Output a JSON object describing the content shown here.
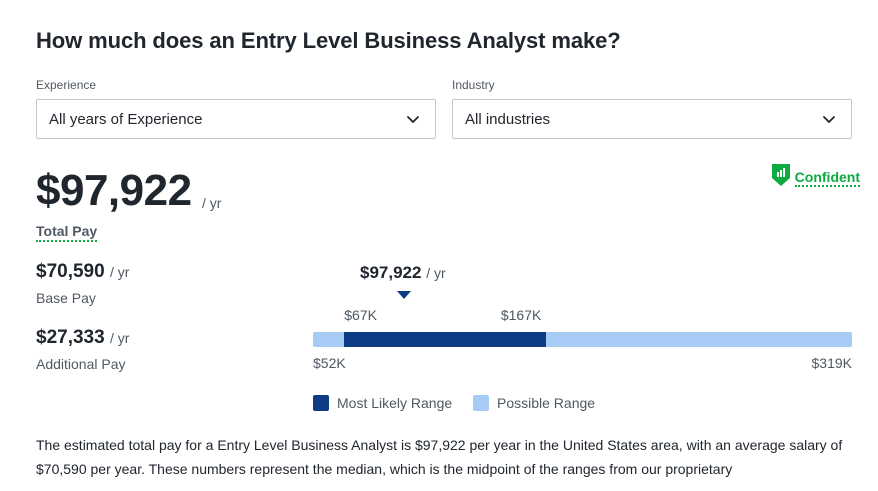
{
  "page": {
    "title": "How much does an Entry Level Business Analyst make?"
  },
  "filters": {
    "experience": {
      "label": "Experience",
      "value": "All years of Experience"
    },
    "industry": {
      "label": "Industry",
      "value": "All industries"
    }
  },
  "confidence": {
    "label": "Confident",
    "color": "#0caa41",
    "icon": "shield-chart-icon"
  },
  "total_pay": {
    "value": "$97,922",
    "unit": "/ yr",
    "label": "Total Pay"
  },
  "base_pay": {
    "value": "$70,590",
    "unit": "/ yr",
    "label": "Base Pay"
  },
  "additional_pay": {
    "value": "$27,333",
    "unit": "/ yr",
    "label": "Additional Pay"
  },
  "range_chart": {
    "median": {
      "value_text": "$97,922",
      "unit": "/ yr",
      "value": 97922
    },
    "likely_low": {
      "text": "$67K",
      "value": 67000
    },
    "likely_high": {
      "text": "$167K",
      "value": 167000
    },
    "possible_low": {
      "text": "$52K",
      "value": 52000
    },
    "possible_high": {
      "text": "$319K",
      "value": 319000
    },
    "colors": {
      "likely": "#0d3b86",
      "possible": "#a6cbf5"
    },
    "legend": {
      "likely": "Most Likely Range",
      "possible": "Possible Range"
    }
  },
  "description": "The estimated total pay for a Entry Level Business Analyst is $97,922 per year in the United States area, with an average salary of $70,590 per year. These numbers represent the median, which is the midpoint of the ranges from our proprietary"
}
